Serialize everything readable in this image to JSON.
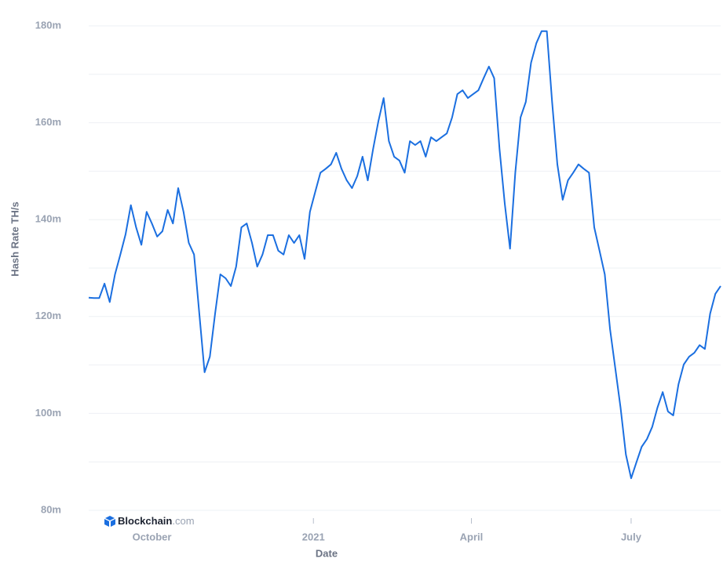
{
  "chart_data": {
    "type": "line",
    "y_axis_label": "Hash Rate TH/s",
    "x_axis_label": "Date",
    "watermark": {
      "brand": "Blockchain",
      "suffix": ".com"
    },
    "grid": true,
    "series": [
      {
        "name": "Hash Rate",
        "color": "#1b6fe0",
        "values": [
          123900000,
          123800000,
          123800000,
          126800000,
          123000000,
          128700000,
          132800000,
          137000000,
          143000000,
          138400000,
          134800000,
          141600000,
          139200000,
          136500000,
          137600000,
          142000000,
          139200000,
          146500000,
          141600000,
          135200000,
          132800000,
          120600000,
          108500000,
          111700000,
          120600000,
          128700000,
          127900000,
          126300000,
          130300000,
          138400000,
          139200000,
          135200000,
          130300000,
          132800000,
          136800000,
          136800000,
          133600000,
          132800000,
          136800000,
          135200000,
          136800000,
          131900000,
          141600000,
          145700000,
          149700000,
          150500000,
          151400000,
          153800000,
          150500000,
          148100000,
          146500000,
          149000000,
          153000000,
          148100000,
          154600000,
          160300000,
          165100000,
          156200000,
          153000000,
          152200000,
          149700000,
          156200000,
          155400000,
          156200000,
          153000000,
          157000000,
          156200000,
          157000000,
          157800000,
          161100000,
          165900000,
          166700000,
          165100000,
          165900000,
          166700000,
          169200000,
          171600000,
          169200000,
          154600000,
          143300000,
          134000000,
          149700000,
          161100000,
          164300000,
          172400000,
          176400000,
          178900000,
          178900000,
          164300000,
          151400000,
          144100000,
          148100000,
          149700000,
          151400000,
          150500000,
          149700000,
          138400000,
          133600000,
          128700000,
          117400000,
          109300000,
          101200000,
          91500000,
          86600000,
          89900000,
          93100000,
          94700000,
          97200000,
          101200000,
          104400000,
          100400000,
          99600000,
          106000000,
          110100000,
          111700000,
          112500000,
          114100000,
          113300000,
          120600000,
          124700000,
          126300000
        ]
      }
    ],
    "xlim": [
      0,
      120
    ],
    "xticks": [
      {
        "value": 12,
        "label": "October"
      },
      {
        "value": 42.67,
        "label": "2021"
      },
      {
        "value": 72.67,
        "label": "April"
      },
      {
        "value": 103,
        "label": "July"
      }
    ],
    "ylim": [
      80000000,
      180000000
    ],
    "yticks": [
      {
        "value": 80000000,
        "label": "80m"
      },
      {
        "value": 100000000,
        "label": "100m"
      },
      {
        "value": 120000000,
        "label": "120m"
      },
      {
        "value": 140000000,
        "label": "140m"
      },
      {
        "value": 160000000,
        "label": "160m"
      },
      {
        "value": 180000000,
        "label": "180m"
      }
    ],
    "yminor_grid": [
      90000000,
      110000000,
      130000000,
      150000000,
      170000000
    ]
  }
}
